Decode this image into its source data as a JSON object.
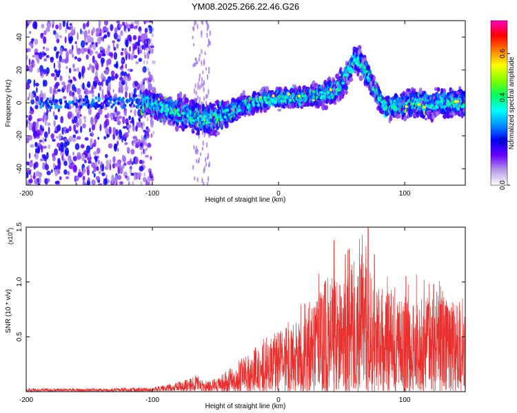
{
  "title": "YM08.2025.266.22.46.G26",
  "colors": {
    "snr_line": "#e8312e",
    "frame": "#000000"
  },
  "chart_data": [
    {
      "type": "heatmap",
      "title": "YM08.2025.266.22.46.G26",
      "xlabel": "Height of straight line (km)",
      "ylabel": "Frequency (Hz)",
      "xlim": [
        -200,
        148
      ],
      "ylim": [
        -50,
        50
      ],
      "xticks": [
        "-200",
        "-100",
        "0",
        "100"
      ],
      "xtick_values": [
        -200,
        -100,
        0,
        100
      ],
      "yticks": [
        "-40",
        "-20",
        "0",
        "20",
        "40"
      ],
      "ytick_values": [
        -40,
        -20,
        0,
        20,
        40
      ],
      "colorbar": {
        "label": "Normalized spectral amplitude",
        "range": [
          0,
          0.75
        ],
        "ticks": [
          "0.0",
          "0.2",
          "0.4",
          "0.6"
        ],
        "tick_values": [
          0.0,
          0.2,
          0.4,
          0.6
        ],
        "colormap": [
          "#ffffff",
          "#b59ae8",
          "#6a00ff",
          "#0000ff",
          "#0090ff",
          "#00ffff",
          "#00ff60",
          "#80ff00",
          "#ffff00",
          "#ff8000",
          "#ff0000",
          "#ff00c0"
        ]
      },
      "ridge": {
        "description_units": "x in km, center frequency in Hz",
        "x": [
          -105,
          -95,
          -85,
          -75,
          -65,
          -55,
          -45,
          -35,
          -25,
          -15,
          -5,
          5,
          15,
          25,
          35,
          45,
          50,
          55,
          60,
          65,
          70,
          75,
          80,
          85,
          90,
          100,
          110,
          120,
          130,
          140,
          148
        ],
        "freq": [
          0,
          -2,
          -4,
          -7,
          -9,
          -10,
          -8,
          -4,
          -1,
          1,
          2,
          3,
          3,
          4,
          5,
          8,
          12,
          18,
          26,
          25,
          18,
          10,
          3,
          -3,
          -2,
          -1,
          0,
          -1,
          0,
          0,
          0
        ],
        "width": [
          6,
          7,
          7,
          8,
          8,
          8,
          7,
          6,
          5,
          5,
          5,
          5,
          5,
          5,
          6,
          6,
          7,
          7,
          7,
          7,
          7,
          6,
          5,
          5,
          6,
          7,
          7,
          7,
          7,
          7,
          7
        ]
      }
    },
    {
      "type": "line",
      "title": "",
      "xlabel": "Height of straight line (km)",
      "ylabel": "SNR (10 * v/v)",
      "scale_label": "(x10",
      "scale_exponent": "4",
      "scale_close": ")",
      "xlim": [
        -200,
        148
      ],
      "ylim": [
        0,
        1.5
      ],
      "xticks": [
        "-200",
        "-100",
        "0",
        "100"
      ],
      "xtick_values": [
        -200,
        -100,
        0,
        100
      ],
      "yticks": [
        "0.5",
        "1.0",
        "1.5"
      ],
      "ytick_values": [
        0.5,
        1.0,
        1.5
      ],
      "envelope": {
        "x": [
          -200,
          -150,
          -100,
          -90,
          -80,
          -70,
          -65,
          -60,
          -50,
          -40,
          -30,
          -20,
          -10,
          0,
          10,
          20,
          30,
          40,
          50,
          60,
          70,
          80,
          90,
          100,
          110,
          120,
          130,
          140,
          148
        ],
        "upper": [
          0.03,
          0.03,
          0.04,
          0.06,
          0.09,
          0.12,
          0.16,
          0.1,
          0.12,
          0.2,
          0.3,
          0.4,
          0.5,
          0.55,
          0.6,
          0.7,
          0.85,
          1.1,
          1.0,
          1.2,
          1.2,
          0.95,
          0.9,
          0.8,
          0.9,
          0.85,
          0.85,
          0.8,
          0.75
        ],
        "peaks": [
          {
            "x": 37,
            "y": 1.0
          },
          {
            "x": 44,
            "y": 1.38
          },
          {
            "x": 53,
            "y": 1.25
          },
          {
            "x": 56,
            "y": 1.3
          },
          {
            "x": 63,
            "y": 1.05
          },
          {
            "x": 71,
            "y": 1.5
          },
          {
            "x": 76,
            "y": 1.25
          },
          {
            "x": 101,
            "y": 1.05
          },
          {
            "x": 123,
            "y": 0.98
          }
        ]
      }
    }
  ]
}
